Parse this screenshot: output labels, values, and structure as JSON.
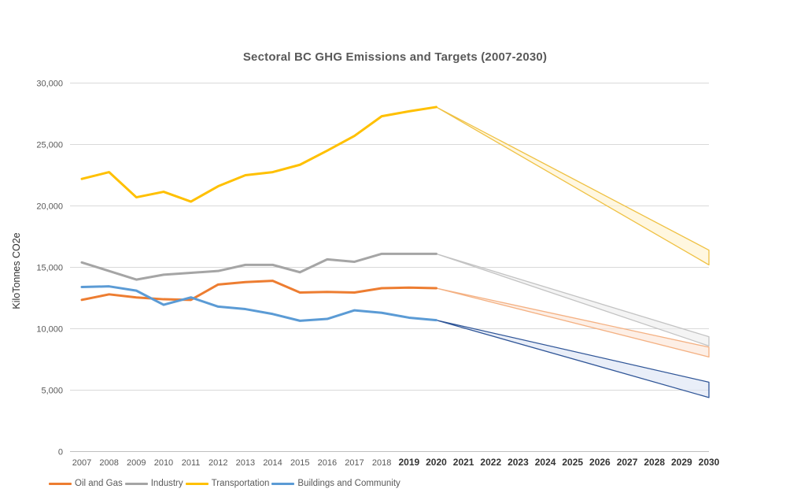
{
  "title": "Sectoral BC GHG Emissions and Targets (2007-2030)",
  "y_axis": {
    "label": "KiloTonnes CO2e",
    "tick_values": [
      0,
      5000,
      10000,
      15000,
      20000,
      25000,
      30000
    ],
    "tick_labels": [
      "0",
      "5,000",
      "10,000",
      "15,000",
      "20,000",
      "25,000",
      "30,000"
    ],
    "min": 0,
    "max": 30000
  },
  "x_axis": {
    "years": [
      2007,
      2008,
      2009,
      2010,
      2011,
      2012,
      2013,
      2014,
      2015,
      2016,
      2017,
      2018,
      2019,
      2020,
      2021,
      2022,
      2023,
      2024,
      2025,
      2026,
      2027,
      2028,
      2029,
      2030
    ],
    "bold_from_year": 2019
  },
  "colors": {
    "grid": "#D9D9D9",
    "axis_line": "#BFBFBF",
    "tick_text": "#595959",
    "tick_text_bold": "#333333",
    "title_text": "#595959"
  },
  "legend": [
    {
      "label": "Oil and Gas",
      "color": "#ED7D31"
    },
    {
      "label": "Industry",
      "color": "#A5A5A5"
    },
    {
      "label": "Transportation",
      "color": "#FFC000"
    },
    {
      "label": "Buildings and Community",
      "color": "#5B9BD5"
    }
  ],
  "chart_data": {
    "type": "line",
    "title": "Sectoral BC GHG Emissions and Targets (2007-2030)",
    "ylabel": "KiloTonnes CO2e",
    "ylim": [
      0,
      30000
    ],
    "grid": "horizontal",
    "legend_position": "bottom-left",
    "actual_years": [
      2007,
      2008,
      2009,
      2010,
      2011,
      2012,
      2013,
      2014,
      2015,
      2016,
      2017,
      2018,
      2019,
      2020
    ],
    "series": [
      {
        "name": "Oil and Gas",
        "color": "#ED7D31",
        "values": [
          12350,
          12800,
          12550,
          12400,
          12350,
          13600,
          13800,
          13900,
          12950,
          13000,
          12950,
          13300,
          13350,
          13300
        ],
        "target_band": {
          "start_year": 2020,
          "end_year": 2030,
          "start_value": 13300,
          "high_2030": 8500,
          "low_2030": 7700,
          "fill": "#FBE5D6",
          "border": "#F4B183"
        }
      },
      {
        "name": "Industry",
        "color": "#A5A5A5",
        "values": [
          15400,
          14700,
          14000,
          14400,
          14550,
          14700,
          15200,
          15200,
          14600,
          15650,
          15450,
          16100,
          16100,
          16100
        ],
        "target_band": {
          "start_year": 2020,
          "end_year": 2030,
          "start_value": 16100,
          "high_2030": 9350,
          "low_2030": 8600,
          "fill": "#EDEDED",
          "border": "#C3C3C3"
        }
      },
      {
        "name": "Transportation",
        "color": "#FFC000",
        "values": [
          22200,
          22750,
          20700,
          21150,
          20350,
          21600,
          22500,
          22750,
          23350,
          24500,
          25700,
          27300,
          27700,
          28050
        ],
        "target_band": {
          "start_year": 2020,
          "end_year": 2030,
          "start_value": 28050,
          "high_2030": 16400,
          "low_2030": 15200,
          "fill": "#FFF2CC",
          "border": "#EFC143"
        }
      },
      {
        "name": "Buildings and Community",
        "color": "#5B9BD5",
        "values": [
          13400,
          13450,
          13100,
          11950,
          12550,
          11800,
          11600,
          11200,
          10650,
          10800,
          11500,
          11300,
          10900,
          10700
        ],
        "target_band": {
          "start_year": 2020,
          "end_year": 2030,
          "start_value": 10700,
          "high_2030": 5650,
          "low_2030": 4400,
          "fill": "#DAE3F3",
          "border": "#2F5597"
        }
      }
    ]
  }
}
